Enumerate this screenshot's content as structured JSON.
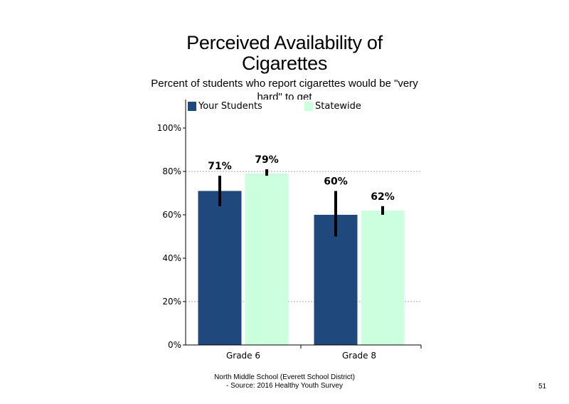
{
  "title": "Perceived Availability of Cigarettes",
  "subtitle": "Percent of students who report cigarettes would be \"very hard\" to get",
  "footer": {
    "line1": "North Middle School (Everett School District)",
    "line2": "- Source: 2016 Healthy Youth Survey",
    "page": "51"
  },
  "colors": {
    "your_students": "#1F497D",
    "statewide": "#CCFFDD",
    "error_bar": "#000000",
    "grid": "#A6A6A6"
  },
  "chart_data": {
    "type": "bar",
    "categories": [
      "Grade 6",
      "Grade 8"
    ],
    "series": [
      {
        "name": "Your Students",
        "values": [
          71,
          60
        ],
        "labels": [
          "71%",
          "60%"
        ],
        "error_low": [
          64,
          50
        ],
        "error_high": [
          78,
          71
        ]
      },
      {
        "name": "Statewide",
        "values": [
          79,
          62
        ],
        "labels": [
          "79%",
          "62%"
        ],
        "error_low": [
          78,
          60
        ],
        "error_high": [
          81,
          64
        ]
      }
    ],
    "yticks": [
      "0%",
      "20%",
      "40%",
      "60%",
      "80%",
      "100%"
    ],
    "ylim": [
      0,
      115
    ],
    "grid": "dotted horizontal at 20% and 80%",
    "legend": "top"
  }
}
